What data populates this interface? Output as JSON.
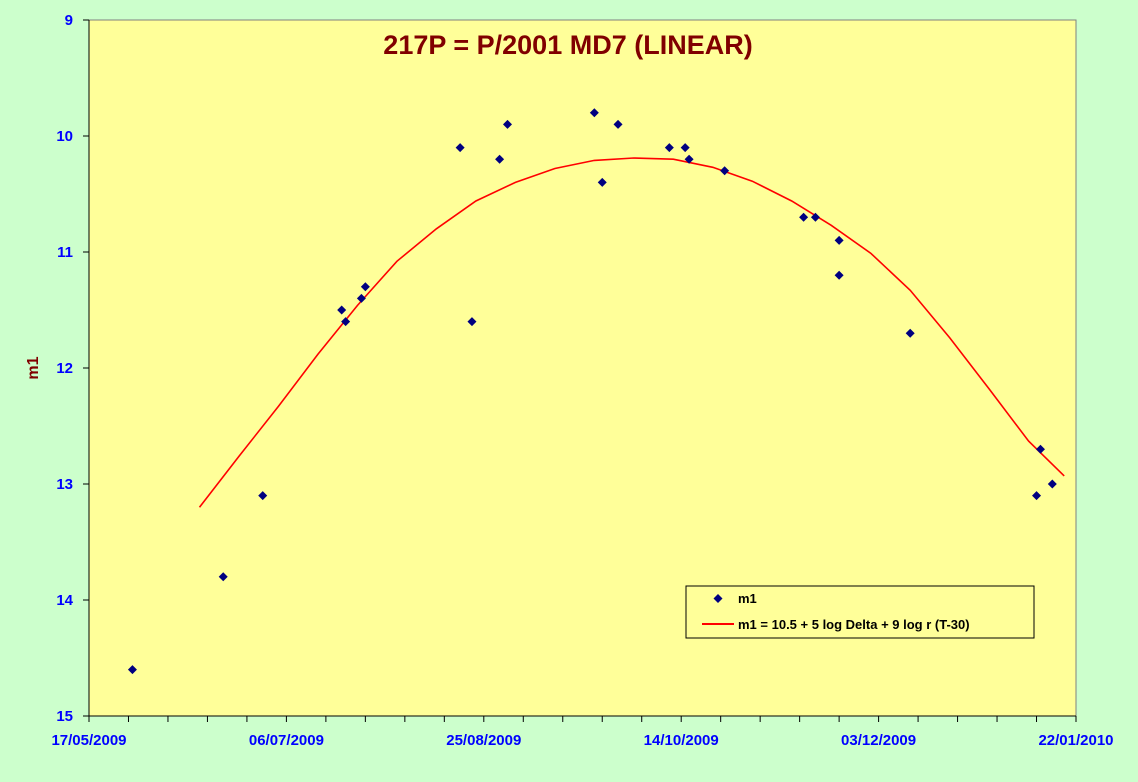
{
  "chart_data": {
    "type": "scatter",
    "title": "217P = P/2001 MD7 (LINEAR)",
    "xlabel": "",
    "ylabel": "m1",
    "x_axis": {
      "type": "date",
      "range": [
        "2009-05-17",
        "2010-01-22"
      ],
      "ticks": [
        "17/05/2009",
        "06/07/2009",
        "25/08/2009",
        "14/10/2009",
        "03/12/2009",
        "22/01/2010"
      ],
      "minor_tick_interval_days": 10
    },
    "y_axis": {
      "range": [
        9,
        15
      ],
      "reversed": true,
      "ticks": [
        "9",
        "10",
        "11",
        "12",
        "13",
        "14",
        "15"
      ]
    },
    "grid": false,
    "legend_position": "bottom-right",
    "series": [
      {
        "name": "m1",
        "kind": "points",
        "marker": "diamond",
        "color": "#000080",
        "points": [
          [
            "2009-05-28",
            14.6
          ],
          [
            "2009-06-20",
            13.8
          ],
          [
            "2009-06-30",
            13.1
          ],
          [
            "2009-07-20",
            11.5
          ],
          [
            "2009-07-21",
            11.6
          ],
          [
            "2009-07-25",
            11.4
          ],
          [
            "2009-07-26",
            11.3
          ],
          [
            "2009-08-19",
            10.1
          ],
          [
            "2009-08-22",
            11.6
          ],
          [
            "2009-08-29",
            10.2
          ],
          [
            "2009-08-31",
            9.9
          ],
          [
            "2009-09-22",
            9.8
          ],
          [
            "2009-09-24",
            10.4
          ],
          [
            "2009-09-28",
            9.9
          ],
          [
            "2009-10-11",
            10.1
          ],
          [
            "2009-10-15",
            10.1
          ],
          [
            "2009-10-16",
            10.2
          ],
          [
            "2009-10-25",
            10.3
          ],
          [
            "2009-11-14",
            10.7
          ],
          [
            "2009-11-17",
            10.7
          ],
          [
            "2009-11-23",
            10.9
          ],
          [
            "2009-11-23",
            11.2
          ],
          [
            "2009-12-11",
            11.7
          ],
          [
            "2010-01-12",
            13.1
          ],
          [
            "2010-01-13",
            12.7
          ],
          [
            "2010-01-16",
            13.0
          ]
        ]
      },
      {
        "name": "m1 = 10.5 + 5 log Delta + 9 log r (T-30)",
        "kind": "line",
        "color": "#ff0000",
        "points": [
          [
            "2009-06-14",
            13.2
          ],
          [
            "2009-06-24",
            12.76
          ],
          [
            "2009-07-04",
            12.33
          ],
          [
            "2009-07-14",
            11.88
          ],
          [
            "2009-07-24",
            11.46
          ],
          [
            "2009-08-03",
            11.08
          ],
          [
            "2009-08-13",
            10.8
          ],
          [
            "2009-08-23",
            10.56
          ],
          [
            "2009-09-02",
            10.4
          ],
          [
            "2009-09-12",
            10.28
          ],
          [
            "2009-09-22",
            10.21
          ],
          [
            "2009-10-02",
            10.19
          ],
          [
            "2009-10-12",
            10.2
          ],
          [
            "2009-10-22",
            10.27
          ],
          [
            "2009-11-01",
            10.39
          ],
          [
            "2009-11-11",
            10.56
          ],
          [
            "2009-11-21",
            10.77
          ],
          [
            "2009-12-01",
            11.01
          ],
          [
            "2009-12-11",
            11.33
          ],
          [
            "2009-12-21",
            11.74
          ],
          [
            "2009-12-31",
            12.18
          ],
          [
            "2010-01-10",
            12.63
          ],
          [
            "2010-01-19",
            12.93
          ]
        ]
      }
    ]
  }
}
